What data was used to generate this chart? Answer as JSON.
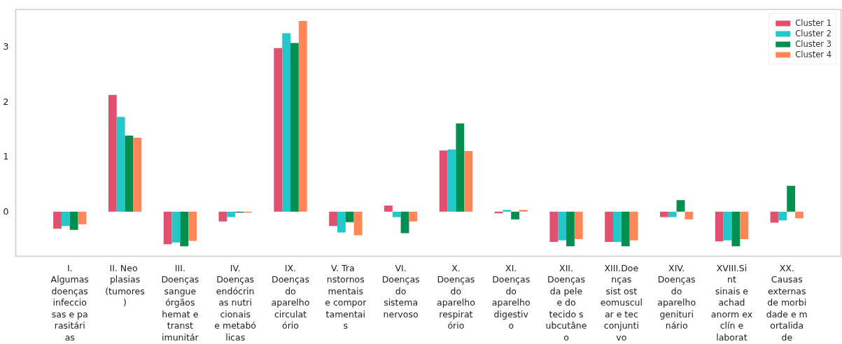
{
  "chart_data": {
    "type": "bar",
    "categories": [
      "I.\nAlgumas\ndoenças\ninfeccio\nsas e pa\nrasitári\nas",
      "II.  Neo\nplasias\n(tumores\n)",
      "III.\nDoenças\nsangue\nórgãos\nhemat e\ntranst\nimunitár",
      "IV.\nDoenças\nendócrin\nas nutri\ncionais\ne metabó\nlicas",
      "IX.\nDoenças\ndo\naparelho\ncirculat\nório",
      "V.   Tra\nnstornos\nmentais\ne compor\ntamentai\ns",
      "VI.\nDoenças\ndo\nsistema\nnervoso",
      "X.\nDoenças\ndo\naparelho\nrespirat\nório",
      "XI.\nDoenças\ndo\naparelho\ndigestiv\no",
      "XII.\nDoenças\nda pele\ne do\ntecido s\nubcutâne\no",
      "XIII.Doe\nnças\nsist ost\neomuscul\nar e tec\nconjunti\nvo",
      "XIV.\nDoenças\ndo\naparelho\ngenituri\nnário",
      "XVIII.Si\nnt\nsinais e\nachad\nanorm ex\nclín e\nlaborat",
      "XX.\nCausas\nexternas\nde morbi\ndade e m\nortalida\nde"
    ],
    "series": [
      {
        "name": "Cluster 1",
        "color": "#e25070",
        "values": [
          -0.31,
          2.12,
          -0.59,
          -0.18,
          2.97,
          -0.26,
          0.11,
          1.11,
          -0.03,
          -0.55,
          -0.55,
          -0.1,
          -0.54,
          -0.2
        ]
      },
      {
        "name": "Cluster 2",
        "color": "#25c8c8",
        "values": [
          -0.26,
          1.72,
          -0.56,
          -0.1,
          3.24,
          -0.38,
          -0.1,
          1.13,
          0.03,
          -0.52,
          -0.55,
          -0.1,
          -0.52,
          -0.16
        ]
      },
      {
        "name": "Cluster 3",
        "color": "#008f4f",
        "values": [
          -0.33,
          1.38,
          -0.63,
          -0.02,
          3.06,
          -0.19,
          -0.39,
          1.6,
          -0.14,
          -0.63,
          -0.63,
          0.21,
          -0.63,
          0.47
        ]
      },
      {
        "name": "Cluster 4",
        "color": "#ff8657",
        "values": [
          -0.23,
          1.34,
          -0.53,
          -0.02,
          3.46,
          -0.43,
          -0.18,
          1.1,
          0.03,
          -0.5,
          -0.52,
          -0.14,
          -0.5,
          -0.12
        ]
      }
    ],
    "ylim": [
      -0.81,
      3.67
    ],
    "yticks": [
      0,
      1,
      2,
      3
    ],
    "legend": "top right",
    "grid": false
  }
}
